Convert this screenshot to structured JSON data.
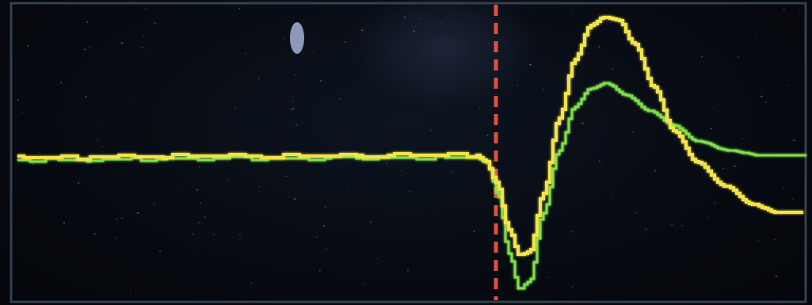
{
  "scene": {
    "description_colors": {
      "background": "#05080d",
      "screen_border": "#3a4a5c",
      "trigger_marker": "#e0503c",
      "trace_yellow": "#f2e34a",
      "trace_green": "#7fe04a"
    },
    "elements": [
      "oscilloscope-screen",
      "trigger-marker",
      "yellow-trace",
      "green-trace"
    ]
  }
}
